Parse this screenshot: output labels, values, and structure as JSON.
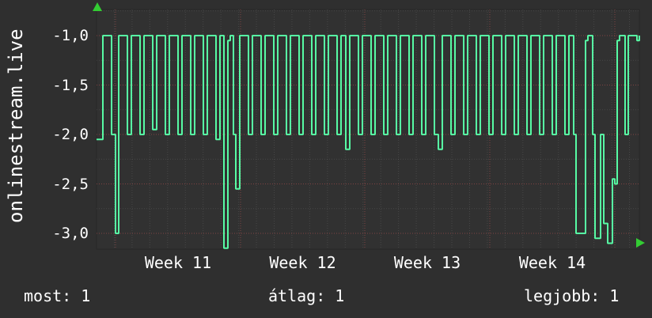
{
  "colors": {
    "background": "#2f2f2f",
    "text": "#ffffff",
    "line": "#57fba4",
    "arrow": "#33cc33",
    "plot_bg": "#313131",
    "plot_border": "#272727",
    "grid_minor": "rgba(150,150,150,0.22)",
    "grid_major": "rgba(255,96,96,0.38)"
  },
  "footer": {
    "most": "most: 1",
    "atlag": "átlag: 1",
    "legjobb": "legjobb: 1"
  },
  "chart_data": {
    "type": "line",
    "style": "step",
    "title": "",
    "ylabel": "onlinestream.live",
    "xlabel": "",
    "x_tick_labels": [
      "Week 11",
      "Week 12",
      "Week 13",
      "Week 14"
    ],
    "y_tick_labels": [
      "-1,0",
      "-1,5",
      "-2,0",
      "-2,5",
      "-3,0"
    ],
    "y_tick_values": [
      -1.0,
      -1.5,
      -2.0,
      -2.5,
      -3.0
    ],
    "ylim": [
      -3.16,
      -0.736
    ],
    "x_range": [
      0,
      686
    ],
    "grid": true,
    "legend_position": "none",
    "stats": {
      "most": 1,
      "atlag": 1,
      "legjobb": 1
    },
    "series": [
      {
        "name": "onlinestream.live",
        "points": [
          [
            0,
            -2.05
          ],
          [
            8,
            -1.0
          ],
          [
            19,
            -2.0
          ],
          [
            24,
            -3.0
          ],
          [
            28,
            -1.0
          ],
          [
            39,
            -2.0
          ],
          [
            44,
            -1.0
          ],
          [
            55,
            -2.0
          ],
          [
            60,
            -1.0
          ],
          [
            71,
            -1.95
          ],
          [
            76,
            -1.0
          ],
          [
            87,
            -2.0
          ],
          [
            92,
            -1.0
          ],
          [
            103,
            -2.0
          ],
          [
            108,
            -1.0
          ],
          [
            119,
            -2.0
          ],
          [
            124,
            -1.0
          ],
          [
            135,
            -2.0
          ],
          [
            140,
            -1.0
          ],
          [
            151,
            -2.05
          ],
          [
            156,
            -1.0
          ],
          [
            161,
            -3.15
          ],
          [
            166,
            -1.05
          ],
          [
            169,
            -1.0
          ],
          [
            173,
            -2.0
          ],
          [
            176,
            -2.55
          ],
          [
            181,
            -1.0
          ],
          [
            192,
            -2.0
          ],
          [
            197,
            -1.0
          ],
          [
            208,
            -2.0
          ],
          [
            213,
            -1.0
          ],
          [
            224,
            -2.0
          ],
          [
            229,
            -1.0
          ],
          [
            240,
            -2.0
          ],
          [
            245,
            -1.0
          ],
          [
            256,
            -2.0
          ],
          [
            261,
            -1.0
          ],
          [
            272,
            -2.0
          ],
          [
            277,
            -1.0
          ],
          [
            288,
            -2.0
          ],
          [
            293,
            -1.0
          ],
          [
            304,
            -2.0
          ],
          [
            309,
            -1.0
          ],
          [
            315,
            -2.15
          ],
          [
            320,
            -1.0
          ],
          [
            331,
            -2.0
          ],
          [
            336,
            -1.0
          ],
          [
            347,
            -2.0
          ],
          [
            352,
            -1.0
          ],
          [
            363,
            -2.0
          ],
          [
            368,
            -1.0
          ],
          [
            379,
            -2.0
          ],
          [
            384,
            -1.0
          ],
          [
            395,
            -2.0
          ],
          [
            400,
            -1.0
          ],
          [
            411,
            -2.0
          ],
          [
            416,
            -1.0
          ],
          [
            427,
            -2.0
          ],
          [
            432,
            -2.15
          ],
          [
            437,
            -1.0
          ],
          [
            448,
            -2.0
          ],
          [
            453,
            -1.0
          ],
          [
            464,
            -2.0
          ],
          [
            469,
            -1.0
          ],
          [
            480,
            -2.0
          ],
          [
            485,
            -1.0
          ],
          [
            496,
            -2.0
          ],
          [
            501,
            -1.0
          ],
          [
            512,
            -2.0
          ],
          [
            517,
            -1.0
          ],
          [
            528,
            -2.0
          ],
          [
            533,
            -1.0
          ],
          [
            544,
            -2.0
          ],
          [
            549,
            -1.0
          ],
          [
            560,
            -2.0
          ],
          [
            565,
            -1.0
          ],
          [
            576,
            -2.0
          ],
          [
            581,
            -1.0
          ],
          [
            592,
            -2.0
          ],
          [
            597,
            -1.0
          ],
          [
            603,
            -2.0
          ],
          [
            606,
            -3.0
          ],
          [
            618,
            -1.05
          ],
          [
            621,
            -1.0
          ],
          [
            627,
            -2.0
          ],
          [
            630,
            -3.05
          ],
          [
            637,
            -2.0
          ],
          [
            641,
            -2.9
          ],
          [
            646,
            -3.1
          ],
          [
            652,
            -2.45
          ],
          [
            655,
            -2.5
          ],
          [
            658,
            -1.05
          ],
          [
            661,
            -1.0
          ],
          [
            668,
            -2.0
          ],
          [
            672,
            -1.0
          ],
          [
            683,
            -1.05
          ],
          [
            686,
            -1.0
          ]
        ]
      }
    ]
  }
}
